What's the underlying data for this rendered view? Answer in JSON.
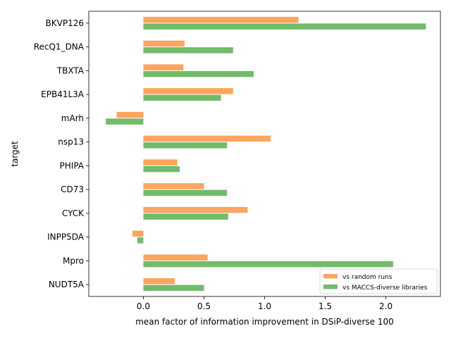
{
  "chart_data": {
    "type": "bar",
    "orientation": "horizontal",
    "xlabel": "mean factor of information improvement in DSiP-diverse 100",
    "ylabel": "target",
    "xlim": [
      -0.45,
      2.45
    ],
    "xticks": [
      "0.0",
      "0.5",
      "1.0",
      "1.5",
      "2.0"
    ],
    "xtick_values": [
      0.0,
      0.5,
      1.0,
      1.5,
      2.0
    ],
    "grid": false,
    "legend_position": "lower-right",
    "categories": [
      "BKVP126",
      "RecQ1_DNA",
      "TBXTA",
      "EPB41L3A",
      "mArh",
      "nsp13",
      "PHIPA",
      "CD73",
      "CYCK",
      "INPP5DA",
      "Mpro",
      "NUDT5A"
    ],
    "series": [
      {
        "name": "vs random runs",
        "color": "#fca55d",
        "values": [
          1.28,
          0.34,
          0.33,
          0.74,
          -0.22,
          1.05,
          0.28,
          0.5,
          0.86,
          -0.09,
          0.53,
          0.26
        ]
      },
      {
        "name": "vs MACCS-diverse libraries",
        "color": "#72bb6a",
        "values": [
          2.33,
          0.74,
          0.91,
          0.64,
          -0.31,
          0.69,
          0.3,
          0.69,
          0.7,
          -0.05,
          2.06,
          0.5
        ]
      }
    ]
  }
}
